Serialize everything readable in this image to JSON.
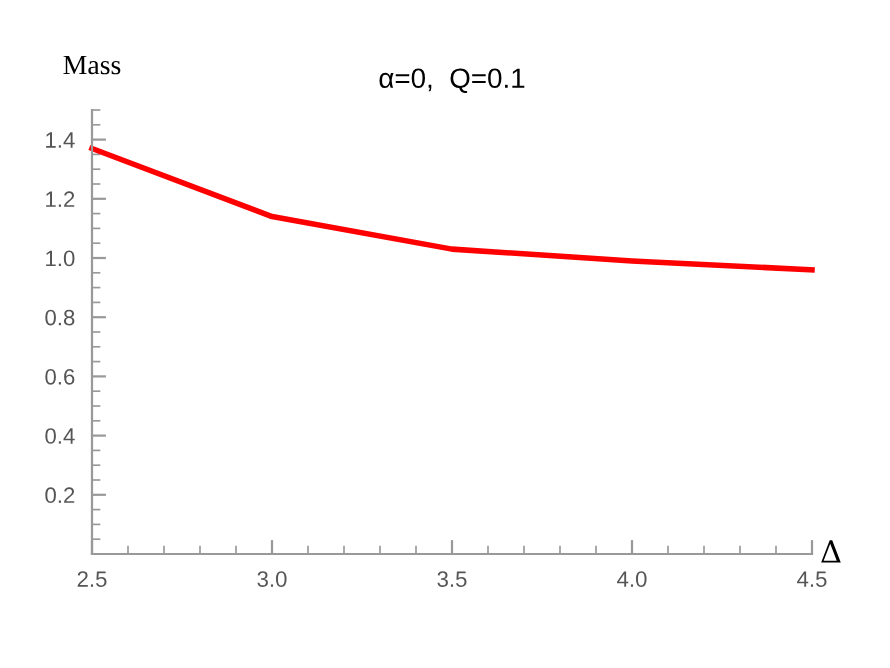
{
  "chart_data": {
    "type": "line",
    "title": "α=0,  Q=0.1",
    "xlabel": "Δ",
    "ylabel": "Mass",
    "x": [
      2.5,
      3.0,
      3.5,
      4.0,
      4.5
    ],
    "series": [
      {
        "color": "#ff0000",
        "values": [
          1.37,
          1.14,
          1.03,
          0.99,
          0.96
        ]
      }
    ],
    "xlim": [
      2.5,
      4.5
    ],
    "ylim": [
      0,
      1.5
    ],
    "xticks": [
      {
        "value": 2.5,
        "label": "2.5"
      },
      {
        "value": 3.0,
        "label": "3.0"
      },
      {
        "value": 3.5,
        "label": "3.5"
      },
      {
        "value": 4.0,
        "label": "4.0"
      },
      {
        "value": 4.5,
        "label": "4.5"
      }
    ],
    "yticks": [
      0.2,
      0.4,
      0.6,
      {
        "value": 0.8,
        "label": "0.8"
      },
      {
        "value": 1.0,
        "label": "1.0"
      },
      1.2,
      1.4
    ],
    "grid": false,
    "marker": "none",
    "line_style": "solid"
  }
}
